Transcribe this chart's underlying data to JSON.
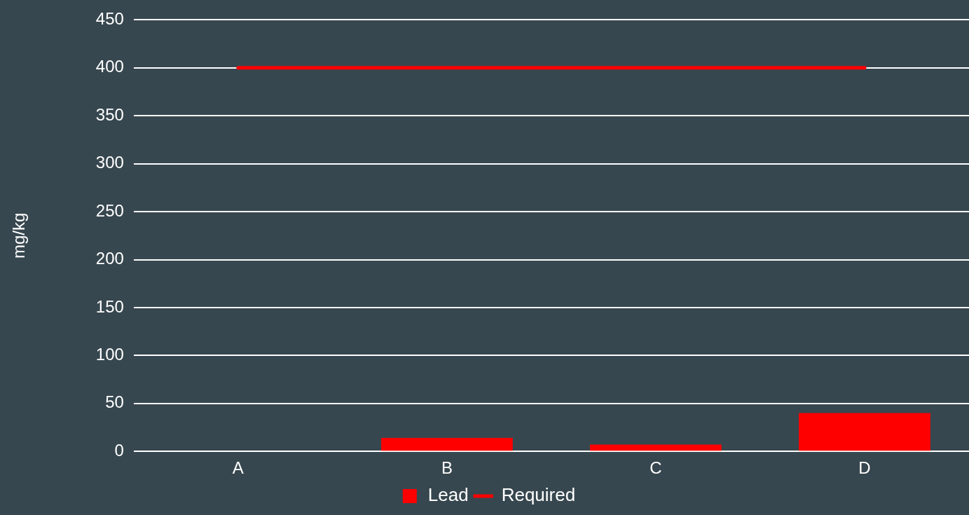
{
  "chart_data": {
    "type": "bar",
    "ylabel": "mg/kg",
    "categories": [
      "A",
      "B",
      "C",
      "D"
    ],
    "series": [
      {
        "name": "Lead",
        "color": "#ff0000",
        "values": [
          0,
          14,
          7,
          40
        ]
      },
      {
        "name": "Required",
        "type": "line",
        "color": "#ff0000",
        "values": [
          400,
          400,
          400,
          400
        ]
      }
    ],
    "ylim": [
      0,
      450
    ],
    "yticks": [
      0,
      50,
      100,
      150,
      200,
      250,
      300,
      350,
      400,
      450
    ],
    "grid": "y",
    "legend": "bottom",
    "marker": "none"
  }
}
